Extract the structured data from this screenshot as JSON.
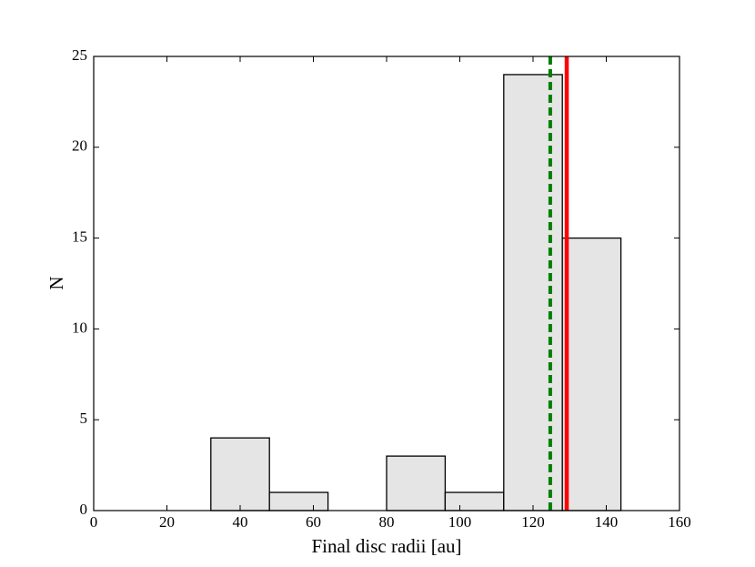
{
  "chart_data": {
    "type": "histogram",
    "xlabel": "Final disc radii [au]",
    "ylabel": "N",
    "bins": [
      32,
      48,
      64,
      80,
      96,
      112,
      128,
      144
    ],
    "counts": [
      4,
      1,
      0,
      3,
      1,
      24,
      15
    ],
    "color": "#e5e5e5",
    "edgecolor": "#000000",
    "vlines": [
      {
        "x": 124.7,
        "color": "#007f00",
        "linestyle": "dashed"
      },
      {
        "x": 129.2,
        "color": "#ff0000",
        "linestyle": "solid"
      }
    ],
    "xlim": [
      0,
      160
    ],
    "xticks": [
      0,
      20,
      40,
      60,
      80,
      100,
      120,
      140,
      160
    ],
    "ylim": [
      0,
      25
    ],
    "yticks": [
      0,
      5,
      10,
      15,
      20,
      25
    ]
  }
}
